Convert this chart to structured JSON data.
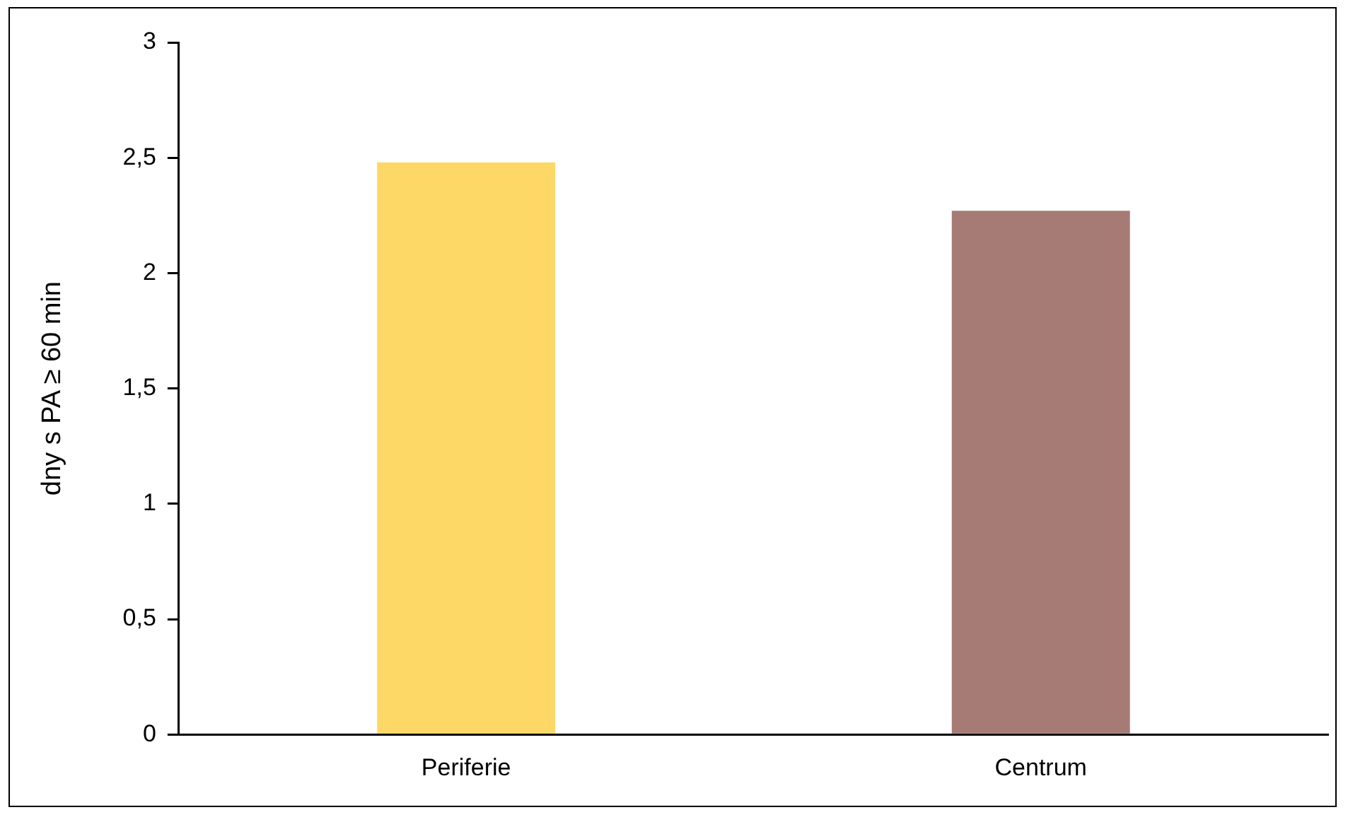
{
  "chart_data": {
    "type": "bar",
    "ylabel": "dny s PA ≥ 60 min",
    "categories": [
      "Periferie",
      "Centrum"
    ],
    "values": [
      2.48,
      2.27
    ],
    "colors": [
      "#fdd866",
      "#a67a75"
    ],
    "ylim": [
      0,
      3
    ],
    "yticks": [
      0,
      {
        "value": 0.5,
        "label": "0,5"
      },
      1,
      {
        "value": 1.5,
        "label": "1,5"
      },
      2,
      {
        "value": 2.5,
        "label": "2,5"
      },
      3
    ],
    "grid": false,
    "legend": false
  }
}
